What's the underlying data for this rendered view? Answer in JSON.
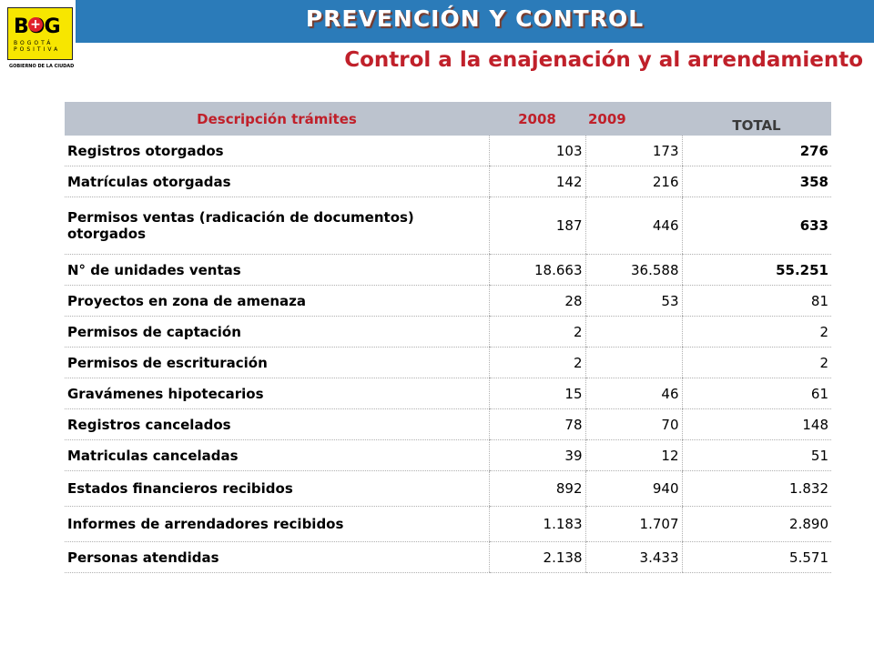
{
  "logo": {
    "main": "BOG",
    "plus": "+",
    "sub1": "BOGOTÁ",
    "sub2": "POSITIVA",
    "gov": "GOBIERNO DE LA CIUDAD"
  },
  "header": {
    "title": "PREVENCIÓN Y CONTROL",
    "subtitle": "Control a la enajenación y al arrendamiento"
  },
  "table": {
    "headers": {
      "desc": "Descripción trámites",
      "y2008": "2008",
      "y2009": "2009",
      "total": "TOTAL"
    },
    "rows": [
      {
        "desc": "Registros otorgados",
        "y2008": "103",
        "y2009": "173",
        "total": "276"
      },
      {
        "desc": "Matrículas otorgadas",
        "y2008": "142",
        "y2009": "216",
        "total": "358"
      },
      {
        "desc": "Permisos ventas (radicación de documentos) otorgados",
        "y2008": "187",
        "y2009": "446",
        "total": "633"
      },
      {
        "desc": "N° de unidades ventas",
        "y2008": "18.663",
        "y2009": "36.588",
        "total": "55.251"
      },
      {
        "desc": "Proyectos en zona de amenaza",
        "y2008": "28",
        "y2009": "53",
        "total": "81"
      },
      {
        "desc": "Permisos de captación",
        "y2008": "2",
        "y2009": "",
        "total": "2"
      },
      {
        "desc": "Permisos de escrituración",
        "y2008": "2",
        "y2009": "",
        "total": "2"
      },
      {
        "desc": "Gravámenes hipotecarios",
        "y2008": "15",
        "y2009": "46",
        "total": "61"
      },
      {
        "desc": "Registros cancelados",
        "y2008": "78",
        "y2009": "70",
        "total": "148"
      },
      {
        "desc": "Matriculas canceladas",
        "y2008": "39",
        "y2009": "12",
        "total": "51"
      },
      {
        "desc": "Estados financieros recibidos",
        "y2008": "892",
        "y2009": "940",
        "total": "1.832"
      },
      {
        "desc": "Informes de arrendadores recibidos",
        "y2008": "1.183",
        "y2009": "1.707",
        "total": "2.890"
      },
      {
        "desc": "Personas atendidas",
        "y2008": "2.138",
        "y2009": "3.433",
        "total": "5.571"
      }
    ]
  }
}
